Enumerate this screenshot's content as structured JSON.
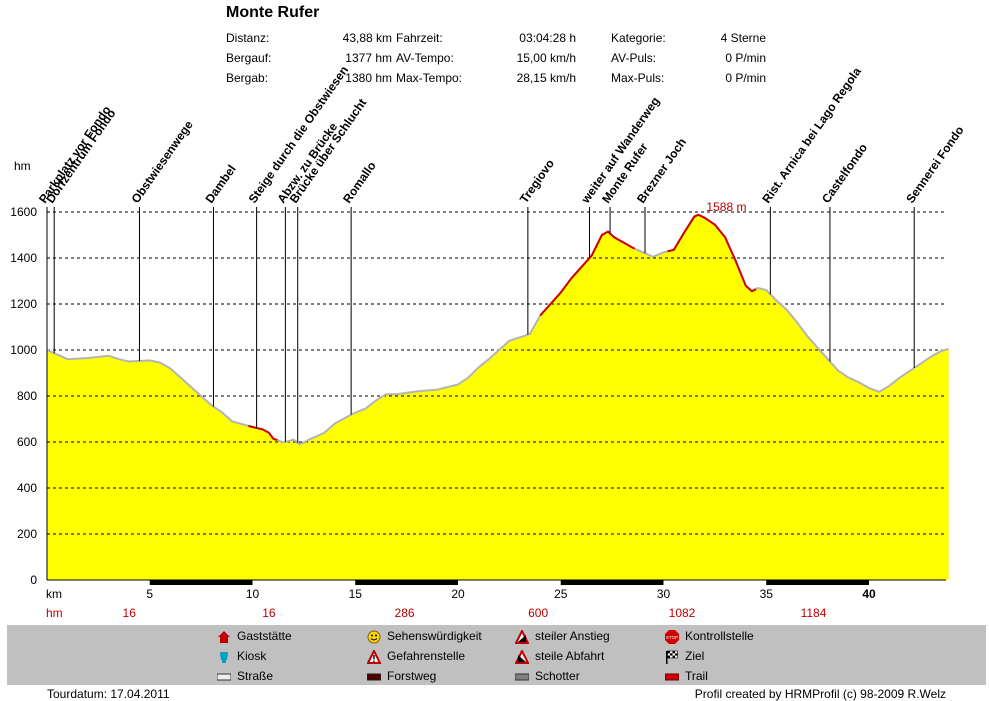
{
  "header": {
    "title": "Monte Rufer",
    "stats": [
      {
        "label": "Distanz:",
        "value": "43,88 km"
      },
      {
        "label": "Bergauf:",
        "value": "1377 hm"
      },
      {
        "label": "Bergab:",
        "value": "1380 hm"
      },
      {
        "label": "Fahrzeit:",
        "value": "03:04:28 h"
      },
      {
        "label": "AV-Tempo:",
        "value": "15,00 km/h"
      },
      {
        "label": "Max-Tempo:",
        "value": "28,15 km/h"
      },
      {
        "label": "Kategorie:",
        "value": "4 Sterne"
      },
      {
        "label": "AV-Puls:",
        "value": "0 P/min"
      },
      {
        "label": "Max-Puls:",
        "value": "0 P/min"
      }
    ]
  },
  "chart_data": {
    "type": "area",
    "ylabel": "hm",
    "xlabel": "km",
    "ylim": [
      0,
      1600
    ],
    "xlim": [
      0,
      43.88
    ],
    "y_ticks": [
      0,
      200,
      400,
      600,
      800,
      1000,
      1200,
      1400,
      1600
    ],
    "x_ticks": [
      5,
      10,
      15,
      20,
      25,
      30,
      35,
      40
    ],
    "grid": true,
    "fill_color": "#ffff00",
    "max_label": "1588 m",
    "max_point": {
      "x": 31.7,
      "y": 1588
    },
    "profile": [
      [
        0,
        1000
      ],
      [
        0.5,
        980
      ],
      [
        1,
        960
      ],
      [
        2,
        965
      ],
      [
        3,
        975
      ],
      [
        3.5,
        960
      ],
      [
        4,
        950
      ],
      [
        5,
        955
      ],
      [
        5.5,
        945
      ],
      [
        6,
        920
      ],
      [
        6.5,
        880
      ],
      [
        7,
        840
      ],
      [
        7.5,
        800
      ],
      [
        8,
        760
      ],
      [
        8.5,
        730
      ],
      [
        9,
        690
      ],
      [
        10,
        665
      ],
      [
        10.5,
        655
      ],
      [
        10.8,
        640
      ],
      [
        11,
        615
      ],
      [
        11.5,
        598
      ],
      [
        12,
        610
      ],
      [
        12.3,
        590
      ],
      [
        12.8,
        612
      ],
      [
        13.5,
        640
      ],
      [
        14,
        680
      ],
      [
        14.5,
        705
      ],
      [
        15,
        728
      ],
      [
        15.5,
        745
      ],
      [
        16,
        780
      ],
      [
        16.5,
        808
      ],
      [
        17,
        808
      ],
      [
        18,
        820
      ],
      [
        19,
        828
      ],
      [
        20,
        850
      ],
      [
        20.5,
        880
      ],
      [
        21,
        925
      ],
      [
        21.5,
        960
      ],
      [
        22,
        1000
      ],
      [
        22.5,
        1040
      ],
      [
        23,
        1055
      ],
      [
        23.5,
        1070
      ],
      [
        24,
        1150
      ],
      [
        24.5,
        1200
      ],
      [
        25,
        1250
      ],
      [
        25.5,
        1310
      ],
      [
        26,
        1360
      ],
      [
        26.5,
        1410
      ],
      [
        27,
        1500
      ],
      [
        27.3,
        1515
      ],
      [
        27.6,
        1490
      ],
      [
        28,
        1470
      ],
      [
        28.5,
        1445
      ],
      [
        29,
        1425
      ],
      [
        29.5,
        1405
      ],
      [
        30,
        1425
      ],
      [
        30.5,
        1435
      ],
      [
        31,
        1510
      ],
      [
        31.5,
        1580
      ],
      [
        31.7,
        1588
      ],
      [
        32,
        1575
      ],
      [
        32.5,
        1545
      ],
      [
        33,
        1490
      ],
      [
        33.5,
        1390
      ],
      [
        34,
        1280
      ],
      [
        34.3,
        1255
      ],
      [
        34.6,
        1270
      ],
      [
        35,
        1260
      ],
      [
        35.5,
        1215
      ],
      [
        36,
        1175
      ],
      [
        36.5,
        1120
      ],
      [
        37,
        1060
      ],
      [
        37.5,
        1010
      ],
      [
        38,
        960
      ],
      [
        38.5,
        910
      ],
      [
        39,
        880
      ],
      [
        39.5,
        860
      ],
      [
        40,
        835
      ],
      [
        40.5,
        818
      ],
      [
        41,
        845
      ],
      [
        41.5,
        880
      ],
      [
        42,
        910
      ],
      [
        42.5,
        940
      ],
      [
        43,
        970
      ],
      [
        43.5,
        995
      ],
      [
        43.88,
        1005
      ]
    ],
    "trail_segments": [
      [
        9.8,
        11.2
      ],
      [
        24,
        27.8
      ],
      [
        27.8,
        28.6
      ],
      [
        30.2,
        34.5
      ]
    ],
    "forstweg_segments": [
      [
        5,
        10
      ],
      [
        15,
        20
      ],
      [
        25,
        30
      ],
      [
        35,
        40
      ]
    ],
    "waypoints": [
      {
        "name": "Parkplatz vor Fondo",
        "km": 0
      },
      {
        "name": "Dorfzentrum Fondo",
        "km": 0.35
      },
      {
        "name": "Obstwiesenwege",
        "km": 4.5
      },
      {
        "name": "Dambel",
        "km": 8.1
      },
      {
        "name": "Steige durch die Obstwiesen",
        "km": 10.2
      },
      {
        "name": "Abzw. zu Brücke",
        "km": 11.6
      },
      {
        "name": "Brücke über Schlucht",
        "km": 12.2
      },
      {
        "name": "Romallo",
        "km": 14.8
      },
      {
        "name": "Tregiovo",
        "km": 23.4
      },
      {
        "name": "weiter auf Wanderweg",
        "km": 26.4
      },
      {
        "name": "Monte Rufer",
        "km": 27.4
      },
      {
        "name": "Brezner Joch",
        "km": 29.1
      },
      {
        "name": "Rist. Arnica bei Lago Regola",
        "km": 35.2
      },
      {
        "name": "Castelfondo",
        "km": 38.1
      },
      {
        "name": "Sennerei Fondo",
        "km": 42.2
      }
    ],
    "hm_row": {
      "label": "hm",
      "values": [
        {
          "km": 4,
          "value": "16"
        },
        {
          "km": 10.8,
          "value": "16"
        },
        {
          "km": 17.4,
          "value": "286"
        },
        {
          "km": 23.9,
          "value": "600"
        },
        {
          "km": 30.9,
          "value": "1082"
        },
        {
          "km": 37.3,
          "value": "1184"
        }
      ]
    }
  },
  "legend": {
    "items": [
      {
        "icon": "house-icon",
        "label": "Gaststätte"
      },
      {
        "icon": "cup-icon",
        "label": "Kiosk"
      },
      {
        "icon": "road-icon",
        "label": "Straße"
      },
      {
        "icon": "smiley-icon",
        "label": "Sehenswürdigkeit"
      },
      {
        "icon": "warning-icon",
        "label": "Gefahrenstelle"
      },
      {
        "icon": "forest-road-icon",
        "label": "Forstweg"
      },
      {
        "icon": "steep-up-icon",
        "label": "steiler Anstieg"
      },
      {
        "icon": "steep-down-icon",
        "label": "steile Abfahrt"
      },
      {
        "icon": "gravel-icon",
        "label": "Schotter"
      },
      {
        "icon": "stop-icon",
        "label": "Kontrollstelle"
      },
      {
        "icon": "finish-flag-icon",
        "label": "Ziel"
      },
      {
        "icon": "trail-icon",
        "label": "Trail"
      }
    ]
  },
  "footer": {
    "tour_date": "Tourdatum: 17.04.2011",
    "credits": "Profil created by HRMProfil (c) 98-2009 R.Welz"
  },
  "colors": {
    "profile_fill": "#ffff00",
    "normal_line": "#b4b4b4",
    "trail_line": "#d00000",
    "hm_text": "#c00000",
    "legend_bg": "#c0c0c0"
  }
}
